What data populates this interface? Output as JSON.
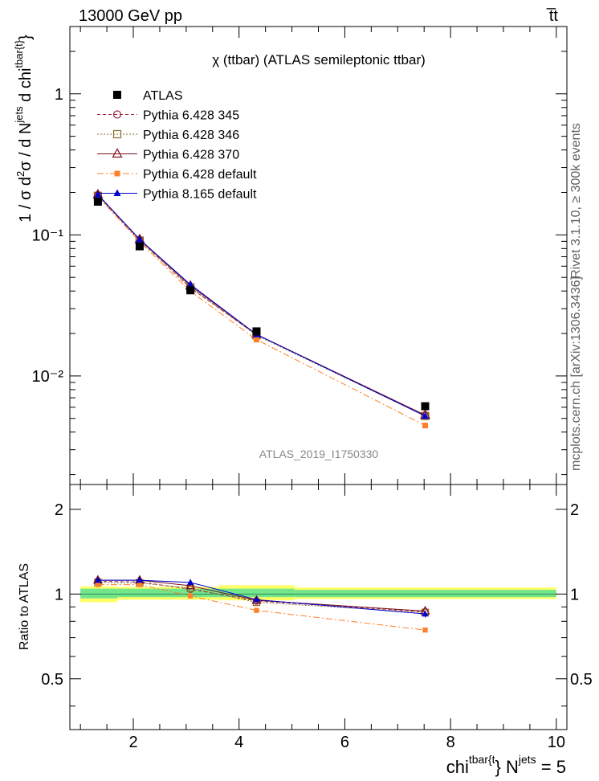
{
  "header": {
    "left": "13000 GeV pp",
    "right": "t̅t"
  },
  "side_labels": {
    "rivet": "Rivet 3.1.10, ≥ 300k events",
    "mcplots": "mcplots.cern.ch [arXiv:1306.3436]"
  },
  "analysis_id": "ATLAS_2019_I1750330",
  "colors": {
    "data": "#000000",
    "p345": "#a0283c",
    "p346": "#8a6d2a",
    "p370": "#7a0f1e",
    "pdef": "#ff7f2a",
    "p8": "#0000cc",
    "band_inner": "#73e68c",
    "band_outer": "#ffff66"
  },
  "chart_data": [
    {
      "type": "line",
      "title": "χ (ttbar) (ATLAS semileptonic ttbar)",
      "ylabel": "1 / σ d²σ / d N^jets d chi^tbar{t}",
      "yscale": "log",
      "xlim": [
        0.8,
        10.2
      ],
      "ylim": [
        0.0017,
        3.0
      ],
      "ytick_labels": [
        "10⁻²",
        "10⁻¹",
        "1"
      ],
      "x": [
        1.33,
        2.12,
        3.08,
        4.33,
        7.52
      ],
      "xerr": [
        [
          1.0,
          1.67
        ],
        [
          1.67,
          2.59
        ],
        [
          2.59,
          3.62
        ],
        [
          3.62,
          5.05
        ],
        [
          5.05,
          10.0
        ]
      ],
      "series": [
        {
          "name": "ATLAS",
          "key": "data",
          "values": [
            0.172,
            0.083,
            0.0405,
            0.0207,
            0.0061
          ]
        },
        {
          "name": "Pythia 6.428 345",
          "key": "p345",
          "values": [
            0.191,
            0.092,
            0.042,
            0.0196,
            0.00525
          ]
        },
        {
          "name": "Pythia 6.428 346",
          "key": "p346",
          "values": [
            0.189,
            0.091,
            0.0425,
            0.0194,
            0.0052
          ]
        },
        {
          "name": "Pythia 6.428 370",
          "key": "p370",
          "values": [
            0.193,
            0.093,
            0.0435,
            0.0197,
            0.00528
          ]
        },
        {
          "name": "Pythia 6.428 default",
          "key": "pdef",
          "values": [
            0.186,
            0.0895,
            0.0398,
            0.0181,
            0.00445
          ]
        },
        {
          "name": "Pythia 8.165 default",
          "key": "p8",
          "values": [
            0.193,
            0.093,
            0.0445,
            0.0197,
            0.0052
          ]
        }
      ]
    },
    {
      "type": "line",
      "ylabel": "Ratio to ATLAS",
      "xlabel": "chi^tbar{t} N^jets = 5",
      "xlim": [
        0.8,
        10.2
      ],
      "ylim": [
        0.33,
        2.45
      ],
      "yticks": [
        0.5,
        1,
        2
      ],
      "ytick_labels": [
        "0.5",
        "1",
        "2"
      ],
      "xticks": [
        2,
        4,
        6,
        8,
        10
      ],
      "xtick_labels": [
        "2",
        "4",
        "6",
        "8",
        "10"
      ],
      "x": [
        1.33,
        2.12,
        3.08,
        4.33,
        7.52
      ],
      "band": {
        "inner": [
          [
            1.0,
            1.7,
            0.965,
            1.045
          ],
          [
            1.7,
            5.05,
            0.975,
            1.045
          ],
          [
            5.05,
            10.0,
            0.975,
            1.035
          ]
        ],
        "outer": [
          [
            1.0,
            1.7,
            0.935,
            1.065
          ],
          [
            1.7,
            3.62,
            0.955,
            1.06
          ],
          [
            3.62,
            5.05,
            0.95,
            1.075
          ],
          [
            5.05,
            10.0,
            0.96,
            1.055
          ]
        ]
      },
      "series": [
        {
          "name": "Pythia 6.428 345",
          "key": "p345",
          "values": [
            1.11,
            1.105,
            1.04,
            0.945,
            0.865
          ]
        },
        {
          "name": "Pythia 6.428 346",
          "key": "p346",
          "values": [
            1.1,
            1.095,
            1.05,
            0.935,
            0.86
          ]
        },
        {
          "name": "Pythia 6.428 370",
          "key": "p370",
          "values": [
            1.12,
            1.12,
            1.07,
            0.95,
            0.87
          ]
        },
        {
          "name": "Pythia 6.428 default",
          "key": "pdef",
          "values": [
            1.08,
            1.08,
            0.985,
            0.875,
            0.745
          ]
        },
        {
          "name": "Pythia 8.165 default",
          "key": "p8",
          "values": [
            1.12,
            1.12,
            1.1,
            0.955,
            0.85
          ]
        }
      ],
      "errors": [
        0.02,
        0.02,
        0.025,
        0.02,
        0.025
      ]
    }
  ]
}
